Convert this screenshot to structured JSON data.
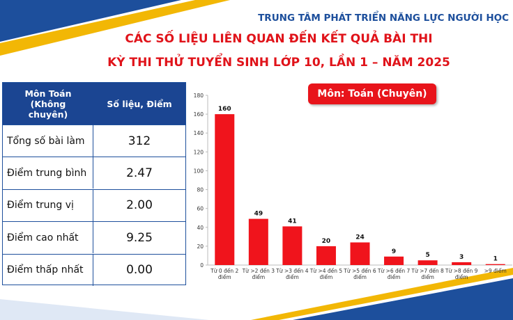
{
  "header": {
    "organization": "TRUNG TÂM PHÁT TRIỂN NĂNG LỰC NGƯỜI HỌC",
    "title_lines": [
      "CÁC SỐ LIỆU LIÊN QUAN ĐẾN KẾT QUẢ BÀI THI",
      "KỲ THI THỬ TUYỂN SINH LỚP 10, LẦN 1 – NĂM 2025"
    ]
  },
  "table": {
    "columns": [
      "Môn Toán (Không chuyên)",
      "Số liệu, Điểm"
    ],
    "rows": [
      [
        "Tổng số bài làm",
        "312"
      ],
      [
        "Điểm trung bình",
        "2.47"
      ],
      [
        "Điểm trung vị",
        "2.00"
      ],
      [
        "Điểm cao nhất",
        "9.25"
      ],
      [
        "Điểm thấp nhất",
        "0.00"
      ]
    ]
  },
  "chart_data": {
    "type": "bar",
    "title": "Môn: Toán (Chuyên)",
    "categories": [
      "Từ 0 đến 2 điểm",
      "Từ >2 đến 3 điểm",
      "Từ >3 đến 4 điểm",
      "Từ >4 đến 5 điểm",
      "Từ >5 đến 6 điểm",
      "Từ >6 đến 7 điểm",
      "Từ >7 đến 8 điểm",
      "Từ >8 đến 9 điểm",
      ">9 điểm"
    ],
    "values": [
      160,
      49,
      41,
      20,
      24,
      9,
      5,
      3,
      1
    ],
    "color": "#f0141c",
    "ylim": [
      0,
      180
    ],
    "yticks": [
      0,
      20,
      40,
      60,
      80,
      100,
      120,
      140,
      160,
      180
    ],
    "grid": false
  }
}
